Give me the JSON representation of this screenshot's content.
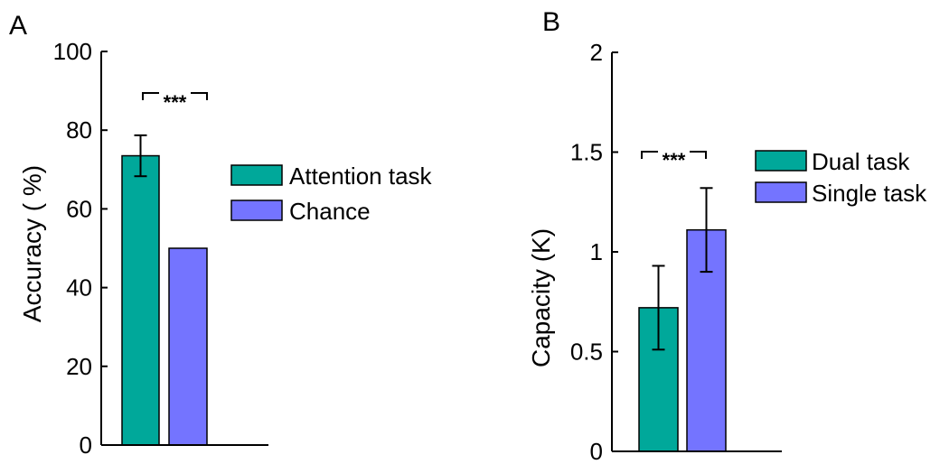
{
  "colors": {
    "teal": "#00a89a",
    "violet": "#7474ff",
    "axis": "#000000"
  },
  "chart_data": [
    {
      "type": "bar",
      "panel_label": "A",
      "ylabel": "Accuracy ( %)",
      "ylim": [
        0,
        100
      ],
      "yticks": [
        "0",
        "20",
        "40",
        "60",
        "80",
        "100"
      ],
      "categories": [
        "Attention task",
        "Chance"
      ],
      "values": [
        73.5,
        50
      ],
      "errors": [
        5.2,
        null
      ],
      "legend": [
        "Attention task",
        "Chance"
      ],
      "legend_position": "right",
      "significance": "***"
    },
    {
      "type": "bar",
      "panel_label": "B",
      "ylabel": "Capacity (K)",
      "ylim": [
        0,
        2
      ],
      "yticks": [
        "0",
        "0.5",
        "1",
        "1.5",
        "2"
      ],
      "categories": [
        "Dual task",
        "Single task"
      ],
      "values": [
        0.72,
        1.11
      ],
      "errors": [
        0.21,
        0.21
      ],
      "legend": [
        "Dual task",
        "Single task"
      ],
      "legend_position": "top-right",
      "significance": "***"
    }
  ]
}
